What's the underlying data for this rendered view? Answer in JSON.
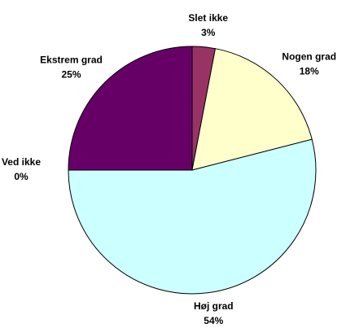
{
  "chart_data": {
    "type": "pie",
    "categories": [
      "Slet ikke",
      "Nogen grad",
      "Høj grad",
      "Ved ikke",
      "Ekstrem grad"
    ],
    "values": [
      3,
      18,
      54,
      0,
      25
    ],
    "value_labels": [
      "3%",
      "18%",
      "54%",
      "0%",
      "25%"
    ],
    "colors": [
      "#993366",
      "#FFFFCC",
      "#CCFFFF",
      "#660066",
      "#660066"
    ]
  }
}
